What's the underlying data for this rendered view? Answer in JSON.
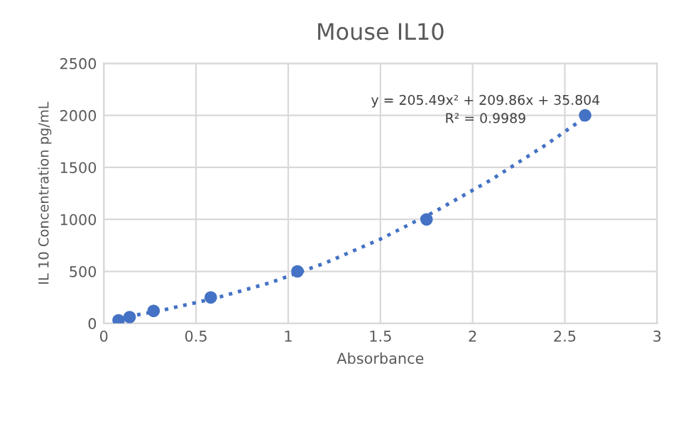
{
  "chart_data": {
    "type": "scatter",
    "title": "Mouse IL10",
    "xlabel": "Absorbance",
    "ylabel": "IL 10 Concentration pg/mL",
    "series": [
      {
        "color": "#4472c4",
        "marker": "circle",
        "x": [
          0.08,
          0.14,
          0.27,
          0.58,
          1.05,
          1.75,
          2.61
        ],
        "values": [
          30,
          60,
          120,
          250,
          500,
          1000,
          2000
        ]
      },
      {
        "type": "line",
        "color": "#4472c4",
        "line_style": "dotted",
        "marker": "none",
        "x": [
          0.08,
          0.3,
          0.6,
          0.9,
          1.2,
          1.5,
          1.8,
          2.1,
          2.4,
          2.61
        ],
        "values": [
          50,
          120,
          240,
          390,
          580,
          810,
          1080,
          1380,
          1720,
          1980
        ]
      }
    ],
    "annotations": [
      "y = 205.49x² + 209.86x + 35.804",
      "R² = 0.9989"
    ],
    "xlim": [
      0,
      3
    ],
    "xticks": [
      0,
      0.5,
      1,
      1.5,
      2,
      2.5,
      3
    ],
    "ylim": [
      0,
      2500
    ],
    "yticks": [
      0,
      500,
      1000,
      1500,
      2000,
      2500
    ],
    "grid": true,
    "legend": false
  }
}
